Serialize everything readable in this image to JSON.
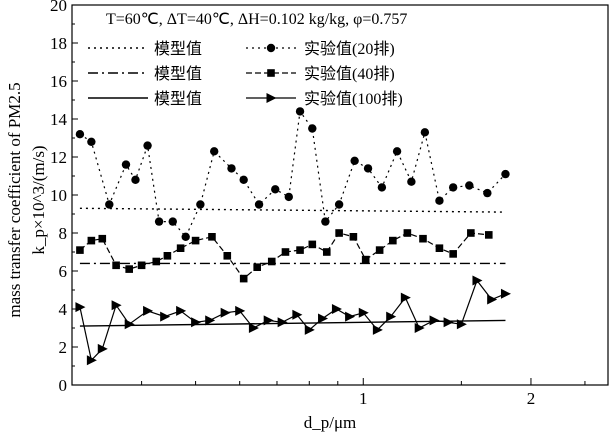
{
  "chart_data": {
    "type": "line",
    "annotation": "T=60℃, ΔT=40℃, ΔH=0.102 kg/kg, φ=0.757",
    "xlabel": "d_p/μm",
    "ylabel_outer": "mass transfer coefficient of PM2.5",
    "ylabel_inner": "k_p×10^3/(m/s)",
    "x_scale": "log",
    "xlim": [
      0.3,
      2.75
    ],
    "ylim": [
      0,
      20
    ],
    "x_ticks": [
      1,
      2
    ],
    "x_minor_ticks": [
      0.4,
      0.5,
      0.6,
      0.7,
      0.8,
      0.9,
      1.5,
      2.5
    ],
    "y_ticks": [
      0,
      2,
      4,
      6,
      8,
      10,
      12,
      14,
      16,
      18,
      20
    ],
    "grid": false,
    "legend_position": "top",
    "series": [
      {
        "name": "实验值(20排)",
        "style": "dotted",
        "marker": "circle",
        "points": [
          [
            0.31,
            13.2
          ],
          [
            0.325,
            12.8
          ],
          [
            0.35,
            9.5
          ],
          [
            0.375,
            11.6
          ],
          [
            0.39,
            10.8
          ],
          [
            0.41,
            12.6
          ],
          [
            0.43,
            8.6
          ],
          [
            0.455,
            8.6
          ],
          [
            0.48,
            7.8
          ],
          [
            0.51,
            9.5
          ],
          [
            0.54,
            12.3
          ],
          [
            0.58,
            11.4
          ],
          [
            0.61,
            10.8
          ],
          [
            0.65,
            9.5
          ],
          [
            0.695,
            10.3
          ],
          [
            0.735,
            9.9
          ],
          [
            0.77,
            14.4
          ],
          [
            0.81,
            13.5
          ],
          [
            0.855,
            8.6
          ],
          [
            0.905,
            9.5
          ],
          [
            0.965,
            11.8
          ],
          [
            1.02,
            11.4
          ],
          [
            1.08,
            10.4
          ],
          [
            1.15,
            12.3
          ],
          [
            1.22,
            10.7
          ],
          [
            1.29,
            13.3
          ],
          [
            1.37,
            9.7
          ],
          [
            1.45,
            10.4
          ],
          [
            1.55,
            10.5
          ],
          [
            1.67,
            10.1
          ],
          [
            1.8,
            11.1
          ]
        ]
      },
      {
        "name": "实验值(40排)",
        "style": "dashed",
        "marker": "square",
        "points": [
          [
            0.31,
            7.1
          ],
          [
            0.325,
            7.6
          ],
          [
            0.34,
            7.7
          ],
          [
            0.36,
            6.3
          ],
          [
            0.38,
            6.1
          ],
          [
            0.4,
            6.3
          ],
          [
            0.425,
            6.5
          ],
          [
            0.445,
            6.8
          ],
          [
            0.47,
            7.2
          ],
          [
            0.5,
            7.6
          ],
          [
            0.535,
            7.8
          ],
          [
            0.57,
            6.8
          ],
          [
            0.61,
            5.6
          ],
          [
            0.645,
            6.2
          ],
          [
            0.685,
            6.5
          ],
          [
            0.725,
            7.0
          ],
          [
            0.77,
            7.1
          ],
          [
            0.81,
            7.4
          ],
          [
            0.86,
            7.0
          ],
          [
            0.905,
            8.0
          ],
          [
            0.96,
            7.8
          ],
          [
            1.01,
            6.6
          ],
          [
            1.07,
            7.1
          ],
          [
            1.13,
            7.6
          ],
          [
            1.2,
            8.0
          ],
          [
            1.28,
            7.7
          ],
          [
            1.37,
            7.2
          ],
          [
            1.45,
            6.9
          ],
          [
            1.56,
            8.0
          ],
          [
            1.68,
            7.9
          ]
        ]
      },
      {
        "name": "实验值(100排)",
        "style": "solid",
        "marker": "triangle-right",
        "points": [
          [
            0.31,
            4.1
          ],
          [
            0.325,
            1.3
          ],
          [
            0.34,
            1.9
          ],
          [
            0.36,
            4.2
          ],
          [
            0.38,
            3.2
          ],
          [
            0.41,
            3.9
          ],
          [
            0.44,
            3.6
          ],
          [
            0.47,
            3.9
          ],
          [
            0.5,
            3.3
          ],
          [
            0.53,
            3.4
          ],
          [
            0.565,
            3.8
          ],
          [
            0.6,
            3.9
          ],
          [
            0.635,
            3.0
          ],
          [
            0.675,
            3.4
          ],
          [
            0.715,
            3.3
          ],
          [
            0.76,
            3.7
          ],
          [
            0.8,
            2.9
          ],
          [
            0.845,
            3.5
          ],
          [
            0.895,
            4.0
          ],
          [
            0.945,
            3.6
          ],
          [
            1.0,
            3.8
          ],
          [
            1.06,
            2.9
          ],
          [
            1.12,
            3.6
          ],
          [
            1.19,
            4.6
          ],
          [
            1.26,
            3.0
          ],
          [
            1.34,
            3.4
          ],
          [
            1.42,
            3.3
          ],
          [
            1.5,
            3.2
          ],
          [
            1.6,
            5.5
          ],
          [
            1.7,
            4.5
          ],
          [
            1.8,
            4.8
          ]
        ]
      },
      {
        "name": "模型值",
        "style": "dotted",
        "marker": "none",
        "points": [
          [
            0.31,
            9.3
          ],
          [
            1.8,
            9.1
          ]
        ]
      },
      {
        "name": "模型值",
        "style": "dashdot",
        "marker": "none",
        "points": [
          [
            0.31,
            6.4
          ],
          [
            1.8,
            6.4
          ]
        ]
      },
      {
        "name": "模型值",
        "style": "solid",
        "marker": "none",
        "points": [
          [
            0.31,
            3.1
          ],
          [
            1.8,
            3.4
          ]
        ]
      }
    ],
    "legend": [
      {
        "model_label": "模型值",
        "model_style": "dotted",
        "exp_label": "实验值(20排)",
        "exp_style": "dotted",
        "exp_marker": "circle"
      },
      {
        "model_label": "模型值",
        "model_style": "dashdot",
        "exp_label": "实验值(40排)",
        "exp_style": "dashed",
        "exp_marker": "square"
      },
      {
        "model_label": "模型值",
        "model_style": "solid",
        "exp_label": "实验值(100排)",
        "exp_style": "solid",
        "exp_marker": "triangle-right"
      }
    ]
  }
}
